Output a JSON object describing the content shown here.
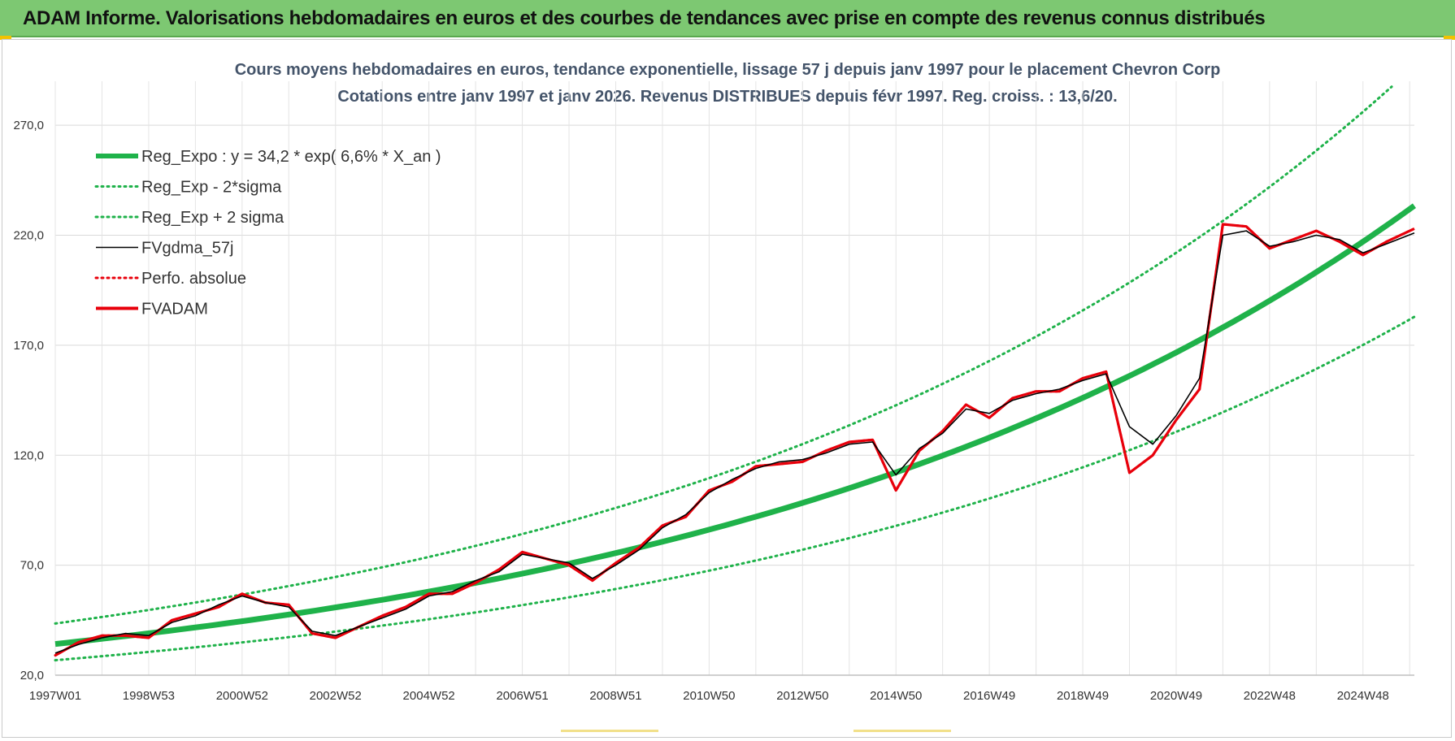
{
  "banner": {
    "title": "ADAM Informe. Valorisations hebdomadaires en euros et des courbes de tendances avec prise en compte des revenus connus distribués"
  },
  "chart_data": {
    "type": "line",
    "title": "Cours moyens hebdomadaires en euros, tendance exponentielle, lissage 57 j depuis janv 1997  pour le placement Chevron Corp",
    "subtitle": "Cotations entre janv 1997 et janv 2026. Revenus DISTRIBUES depuis févr 1997. Reg. croiss. : 13,6/20.",
    "xlabel": "",
    "ylabel": "",
    "ylim": [
      20,
      290
    ],
    "yticks": [
      20,
      70,
      120,
      170,
      220,
      270
    ],
    "ytick_labels": [
      "20,0",
      "70,0",
      "120,0",
      "170,0",
      "220,0",
      "270,0"
    ],
    "xlim": [
      1997.0,
      2026.1
    ],
    "xticks": [
      1997.0,
      1999.0,
      2001.0,
      2003.0,
      2005.0,
      2007.0,
      2009.0,
      2011.0,
      2013.0,
      2015.0,
      2017.0,
      2019.0,
      2021.0,
      2023.0,
      2025.0
    ],
    "xtick_labels": [
      "1997W01",
      "1998W53",
      "2000W52",
      "2002W52",
      "2004W52",
      "2006W51",
      "2008W51",
      "2010W50",
      "2012W50",
      "2014W50",
      "2016W49",
      "2018W49",
      "2020W49",
      "2022W48",
      "2024W48"
    ],
    "grid": true,
    "legend_position": "top-left",
    "series": [
      {
        "name": "Reg_Expo : y = 34,2 * exp( 6,6% *  X_an )",
        "color": "#1fb24a",
        "style": "solid-thick",
        "function": "exp",
        "x": [
          1997.0,
          2026.1
        ],
        "a": 34.2,
        "rate": 0.066
      },
      {
        "name": "Reg_Exp - 2*sigma",
        "color": "#1fb24a",
        "style": "dotted",
        "function": "exp",
        "x": [
          1997.0,
          2026.1
        ],
        "a": 26.8,
        "rate": 0.066
      },
      {
        "name": "Reg_Exp + 2 sigma",
        "color": "#1fb24a",
        "style": "dotted",
        "function": "exp",
        "x": [
          1997.0,
          2026.1
        ],
        "a": 43.5,
        "rate": 0.066
      },
      {
        "name": "FVgdma_57j",
        "color": "#000000",
        "style": "solid-thin",
        "x": [
          1997.0,
          1997.5,
          1998.0,
          1998.5,
          1999.0,
          1999.5,
          2000.0,
          2000.5,
          2001.0,
          2001.5,
          2002.0,
          2002.5,
          2003.0,
          2003.5,
          2004.0,
          2004.5,
          2005.0,
          2005.5,
          2006.0,
          2006.5,
          2007.0,
          2007.5,
          2008.0,
          2008.5,
          2009.0,
          2009.5,
          2010.0,
          2010.5,
          2011.0,
          2011.5,
          2012.0,
          2012.5,
          2013.0,
          2013.5,
          2014.0,
          2014.5,
          2015.0,
          2015.5,
          2016.0,
          2016.5,
          2017.0,
          2017.5,
          2018.0,
          2018.5,
          2019.0,
          2019.5,
          2020.0,
          2020.5,
          2021.0,
          2021.5,
          2022.0,
          2022.5,
          2023.0,
          2023.5,
          2024.0,
          2024.5,
          2025.0,
          2025.5,
          2026.1
        ],
        "values": [
          30,
          34,
          37,
          39,
          38,
          44,
          47,
          52,
          56,
          53,
          51,
          40,
          38,
          42,
          46,
          50,
          56,
          58,
          63,
          67,
          75,
          73,
          71,
          64,
          70,
          77,
          87,
          93,
          103,
          109,
          114,
          117,
          118,
          121,
          125,
          126,
          111,
          123,
          130,
          141,
          139,
          145,
          148,
          150,
          154,
          157,
          133,
          125,
          138,
          155,
          220,
          222,
          215,
          217,
          220,
          218,
          212,
          216,
          221
        ]
      },
      {
        "name": "Perfo. absolue",
        "color": "#e8000b",
        "style": "dotted",
        "x": [
          1997.0,
          1997.5,
          1998.0,
          1998.5,
          1999.0,
          1999.5,
          2000.0,
          2000.5,
          2001.0,
          2001.5,
          2002.0,
          2002.5,
          2003.0,
          2003.5,
          2004.0,
          2004.5,
          2005.0,
          2005.5,
          2006.0,
          2006.5,
          2007.0,
          2007.5,
          2008.0,
          2008.5,
          2009.0,
          2009.5,
          2010.0,
          2010.5,
          2011.0,
          2011.5,
          2012.0,
          2012.5,
          2013.0,
          2013.5,
          2014.0,
          2014.5,
          2015.0,
          2015.5,
          2016.0,
          2016.5,
          2017.0,
          2017.5,
          2018.0,
          2018.5,
          2019.0,
          2019.5,
          2020.0,
          2020.5,
          2021.0,
          2021.5,
          2022.0,
          2022.5,
          2023.0,
          2023.5,
          2024.0,
          2024.5,
          2025.0,
          2025.5,
          2026.1
        ],
        "values": [
          29,
          35,
          38,
          38,
          37,
          45,
          48,
          51,
          57,
          53,
          52,
          39,
          37,
          42,
          47,
          51,
          57,
          57,
          62,
          68,
          76,
          73,
          70,
          63,
          71,
          78,
          88,
          92,
          104,
          108,
          115,
          116,
          117,
          122,
          126,
          127,
          104,
          122,
          131,
          143,
          137,
          146,
          149,
          149,
          155,
          158,
          112,
          120,
          136,
          150,
          225,
          224,
          214,
          218,
          222,
          217,
          211,
          217,
          223
        ]
      },
      {
        "name": "FVADAM",
        "color": "#e8000b",
        "style": "solid-thick",
        "x": [
          1997.0,
          1997.5,
          1998.0,
          1998.5,
          1999.0,
          1999.5,
          2000.0,
          2000.5,
          2001.0,
          2001.5,
          2002.0,
          2002.5,
          2003.0,
          2003.5,
          2004.0,
          2004.5,
          2005.0,
          2005.5,
          2006.0,
          2006.5,
          2007.0,
          2007.5,
          2008.0,
          2008.5,
          2009.0,
          2009.5,
          2010.0,
          2010.5,
          2011.0,
          2011.5,
          2012.0,
          2012.5,
          2013.0,
          2013.5,
          2014.0,
          2014.5,
          2015.0,
          2015.5,
          2016.0,
          2016.5,
          2017.0,
          2017.5,
          2018.0,
          2018.5,
          2019.0,
          2019.5,
          2020.0,
          2020.5,
          2021.0,
          2021.5,
          2022.0,
          2022.5,
          2023.0,
          2023.5,
          2024.0,
          2024.5,
          2025.0,
          2025.5,
          2026.1
        ],
        "values": [
          29,
          35,
          38,
          38,
          37,
          45,
          48,
          51,
          57,
          53,
          52,
          39,
          37,
          42,
          47,
          51,
          57,
          57,
          62,
          68,
          76,
          73,
          70,
          63,
          71,
          78,
          88,
          92,
          104,
          108,
          115,
          116,
          117,
          122,
          126,
          127,
          104,
          122,
          131,
          143,
          137,
          146,
          149,
          149,
          155,
          158,
          112,
          120,
          136,
          150,
          225,
          224,
          214,
          218,
          222,
          217,
          211,
          217,
          223
        ]
      }
    ]
  }
}
